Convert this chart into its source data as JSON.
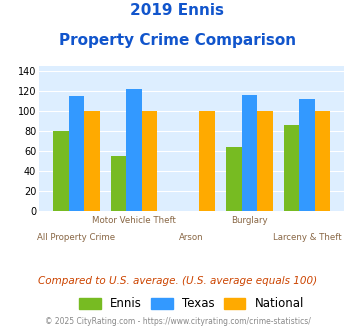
{
  "title_line1": "2019 Ennis",
  "title_line2": "Property Crime Comparison",
  "categories": [
    "All Property Crime",
    "Motor Vehicle Theft",
    "Arson",
    "Burglary",
    "Larceny & Theft"
  ],
  "ennis": [
    80,
    55,
    0,
    64,
    86
  ],
  "texas": [
    115,
    122,
    0,
    116,
    112
  ],
  "national": [
    100,
    100,
    100,
    100,
    100
  ],
  "colors": {
    "ennis": "#77bb22",
    "texas": "#3399ff",
    "national": "#ffaa00"
  },
  "ylim": [
    0,
    145
  ],
  "yticks": [
    0,
    20,
    40,
    60,
    80,
    100,
    120,
    140
  ],
  "plot_bg": "#ddeeff",
  "title_color": "#1155cc",
  "xlabel_color": "#886644",
  "note_text": "Compared to U.S. average. (U.S. average equals 100)",
  "note_color": "#cc4400",
  "footer_text": "© 2025 CityRating.com - https://www.cityrating.com/crime-statistics/",
  "footer_color": "#888888",
  "legend_labels": [
    "Ennis",
    "Texas",
    "National"
  ]
}
